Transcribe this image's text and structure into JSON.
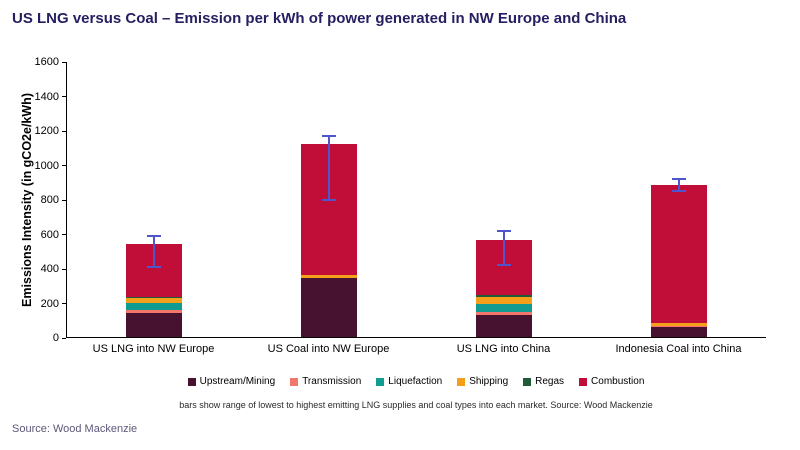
{
  "title": "US LNG versus Coal – Emission per kWh of power generated in NW Europe and China",
  "footnote": "bars show range of lowest to highest emitting LNG supplies and coal types into each market. Source: Wood Mackenzie",
  "source": "Source: Wood Mackenzie",
  "chart_data": {
    "type": "bar",
    "stacked": true,
    "title": "US LNG versus Coal – Emission per kWh of power generated in NW Europe and China",
    "ylabel": "Emissions Intensity (in gCO2e/kWh)",
    "xlabel": "",
    "ylim": [
      0,
      1600
    ],
    "ytick_step": 200,
    "grid": false,
    "legend_position": "bottom",
    "categories": [
      "US LNG into NW Europe",
      "US Coal into NW Europe",
      "US LNG into China",
      "Indonesia Coal into China"
    ],
    "series": [
      {
        "name": "Upstream/Mining",
        "color": "#47122f",
        "values": [
          140,
          340,
          130,
          60
        ]
      },
      {
        "name": "Transmission",
        "color": "#f4756b",
        "values": [
          15,
          0,
          15,
          5
        ]
      },
      {
        "name": "Liquefaction",
        "color": "#119b91",
        "values": [
          40,
          0,
          45,
          0
        ]
      },
      {
        "name": "Shipping",
        "color": "#f5a01a",
        "values": [
          30,
          20,
          45,
          15
        ]
      },
      {
        "name": "Regas",
        "color": "#1d5c38",
        "values": [
          10,
          0,
          10,
          0
        ]
      },
      {
        "name": "Combustion",
        "color": "#c10e38",
        "values": [
          305,
          760,
          315,
          800
        ]
      }
    ],
    "totals": [
      540,
      1120,
      560,
      880
    ],
    "error_bars": [
      {
        "low": 400,
        "high": 590
      },
      {
        "low": 790,
        "high": 1170
      },
      {
        "low": 410,
        "high": 620
      },
      {
        "low": 840,
        "high": 920
      }
    ],
    "error_bar_color": "#4f55cb",
    "title_color": "#241f62"
  }
}
